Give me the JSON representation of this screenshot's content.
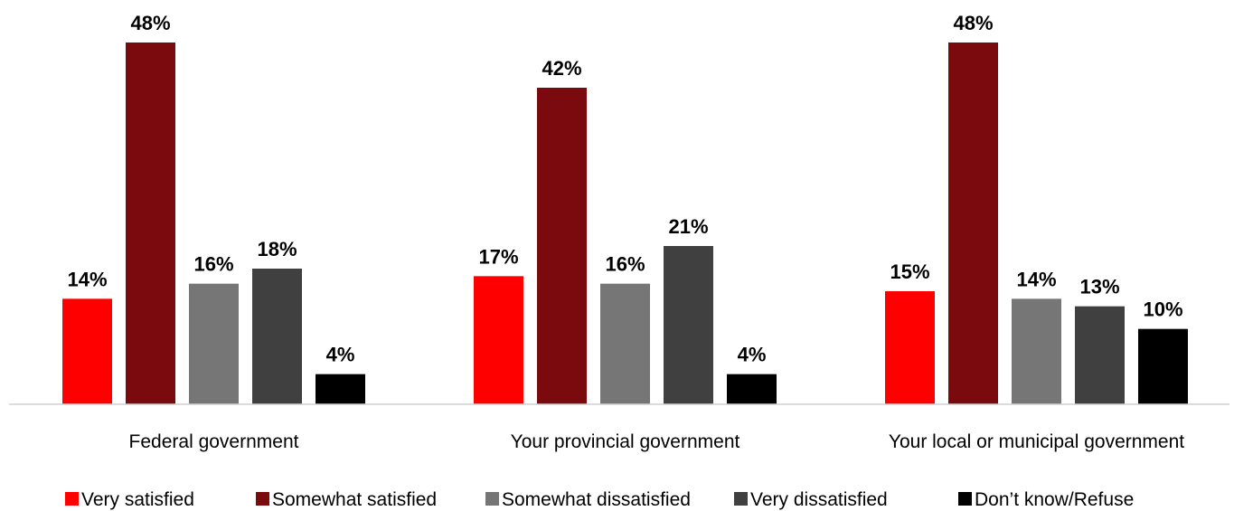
{
  "chart_data": {
    "type": "bar",
    "categories": [
      "Federal government",
      "Your provincial government",
      "Your local or municipal government"
    ],
    "series": [
      {
        "name": "Very satisfied",
        "color": "#ff0000",
        "values": [
          14,
          17,
          15
        ]
      },
      {
        "name": "Somewhat satisfied",
        "color": "#7b0a0e",
        "values": [
          48,
          42,
          48
        ]
      },
      {
        "name": "Somewhat dissatisfied",
        "color": "#767676",
        "values": [
          16,
          16,
          14
        ]
      },
      {
        "name": "Very dissatisfied",
        "color": "#404040",
        "values": [
          18,
          21,
          13
        ]
      },
      {
        "name": "Don’t know/Refuse",
        "color": "#000000",
        "values": [
          4,
          4,
          10
        ]
      }
    ],
    "value_suffix": "%",
    "ylim": [
      0,
      48
    ],
    "grid": false,
    "legend_position": "bottom"
  }
}
